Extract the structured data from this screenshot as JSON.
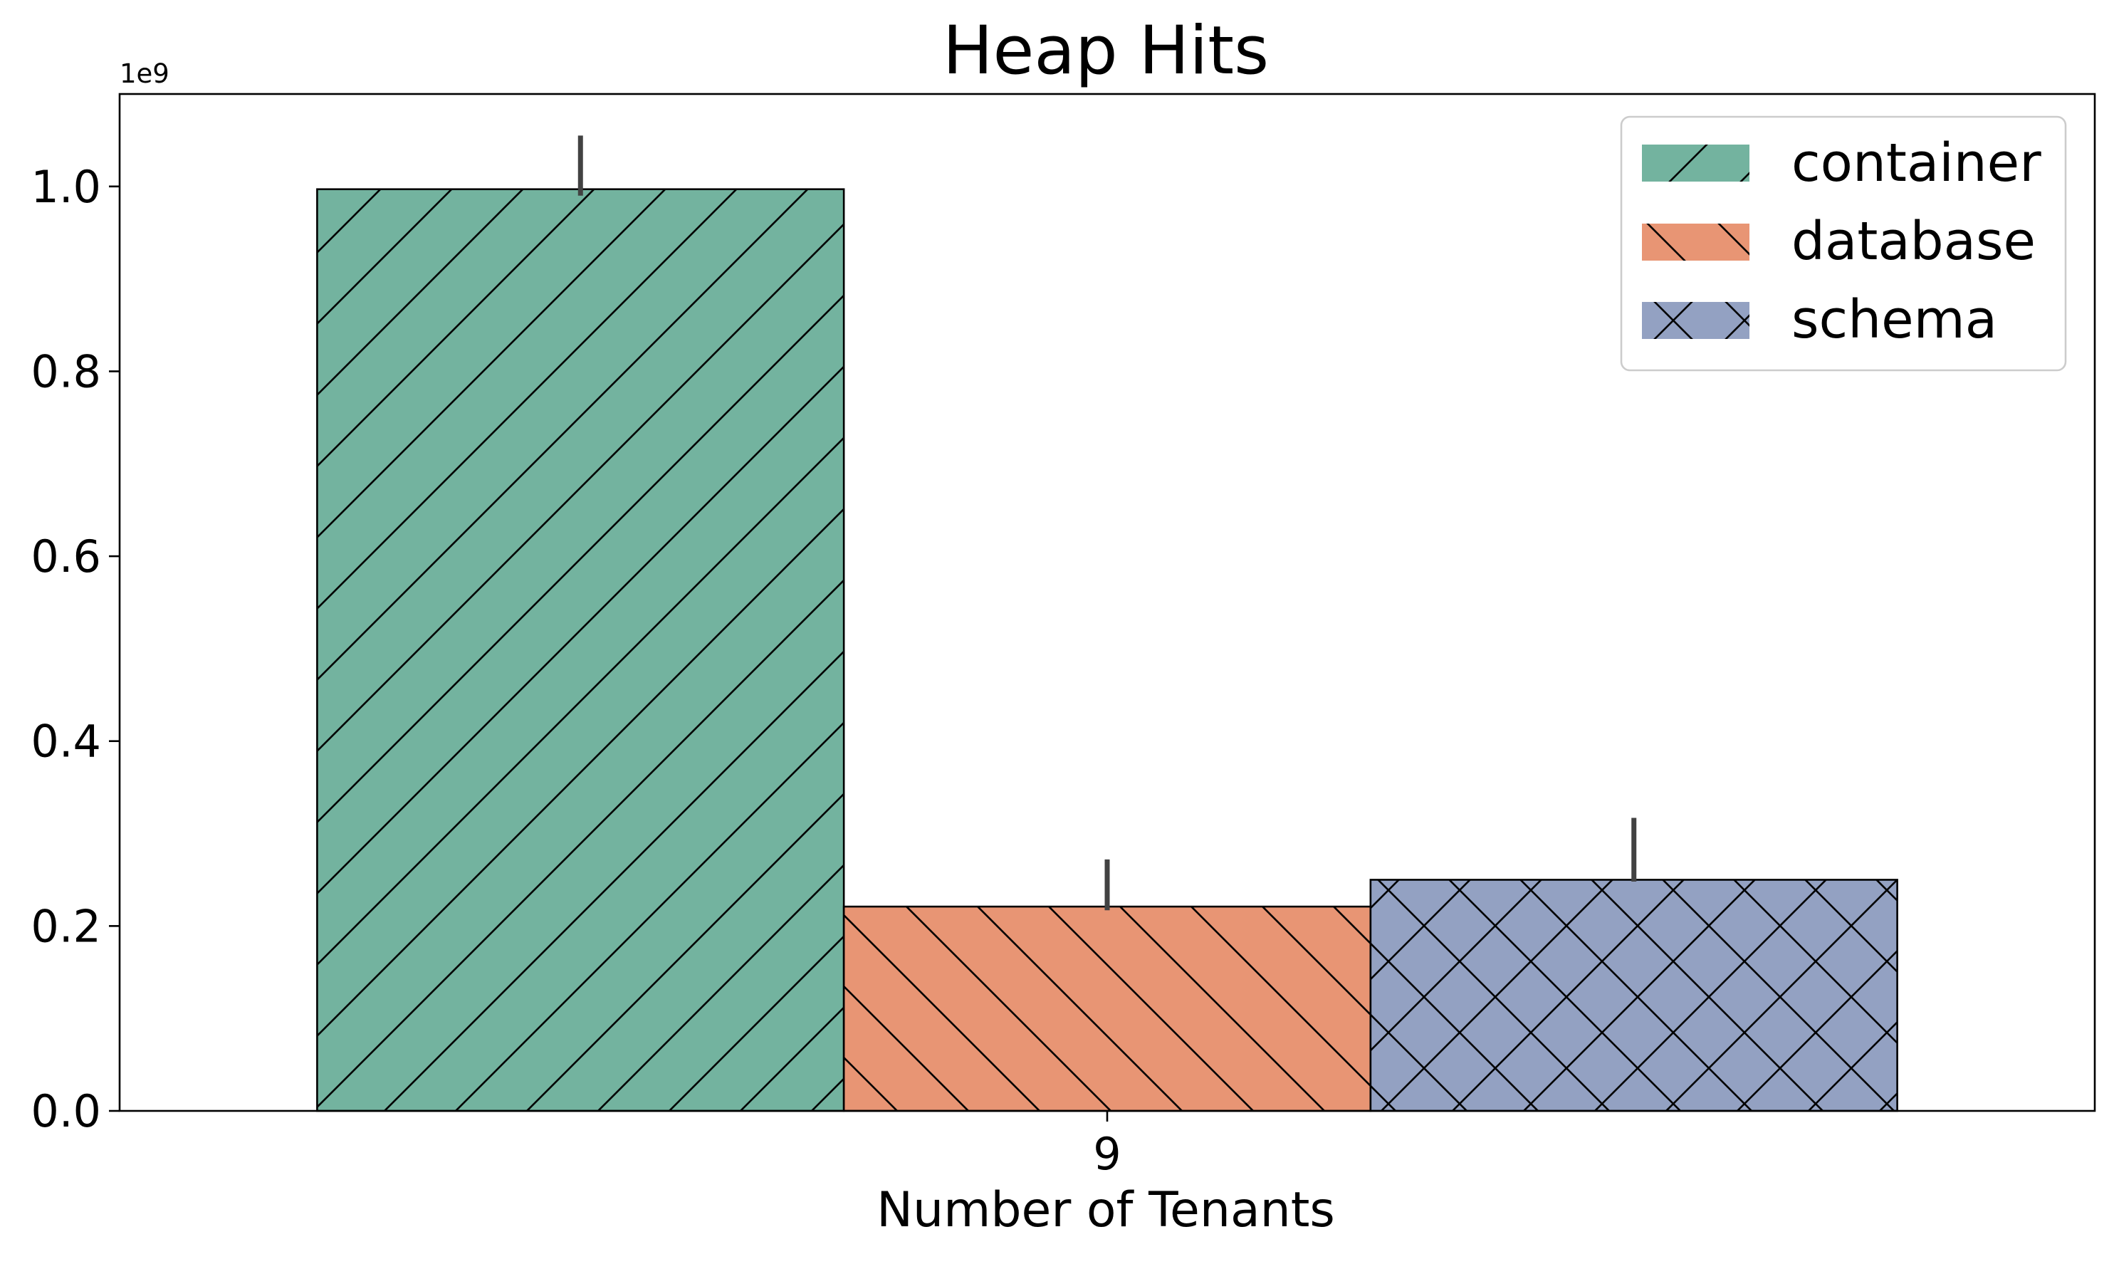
{
  "chart_data": {
    "type": "bar",
    "title": "Heap Hits",
    "xlabel": "Number of Tenants",
    "ylabel": "",
    "y_offset_label": "1e9",
    "categories": [
      "9"
    ],
    "ylim": [
      0,
      1.1
    ],
    "y_ticks": [
      "0.0",
      "0.2",
      "0.4",
      "0.6",
      "0.8",
      "1.0"
    ],
    "y_unit_multiplier": 1000000000,
    "grid": false,
    "legend_placement": "top-right",
    "series": [
      {
        "name": "container",
        "values": [
          0.997
        ],
        "error_high": [
          1.055
        ],
        "error_low": [
          0.99
        ],
        "color": "#73b39f",
        "hatch": "/"
      },
      {
        "name": "database",
        "values": [
          0.221
        ],
        "error_high": [
          0.272
        ],
        "error_low": [
          0.217
        ],
        "color": "#e89574",
        "hatch": "\\"
      },
      {
        "name": "schema",
        "values": [
          0.25
        ],
        "error_high": [
          0.317
        ],
        "error_low": [
          0.248
        ],
        "color": "#93a1c2",
        "hatch": "x"
      }
    ]
  }
}
